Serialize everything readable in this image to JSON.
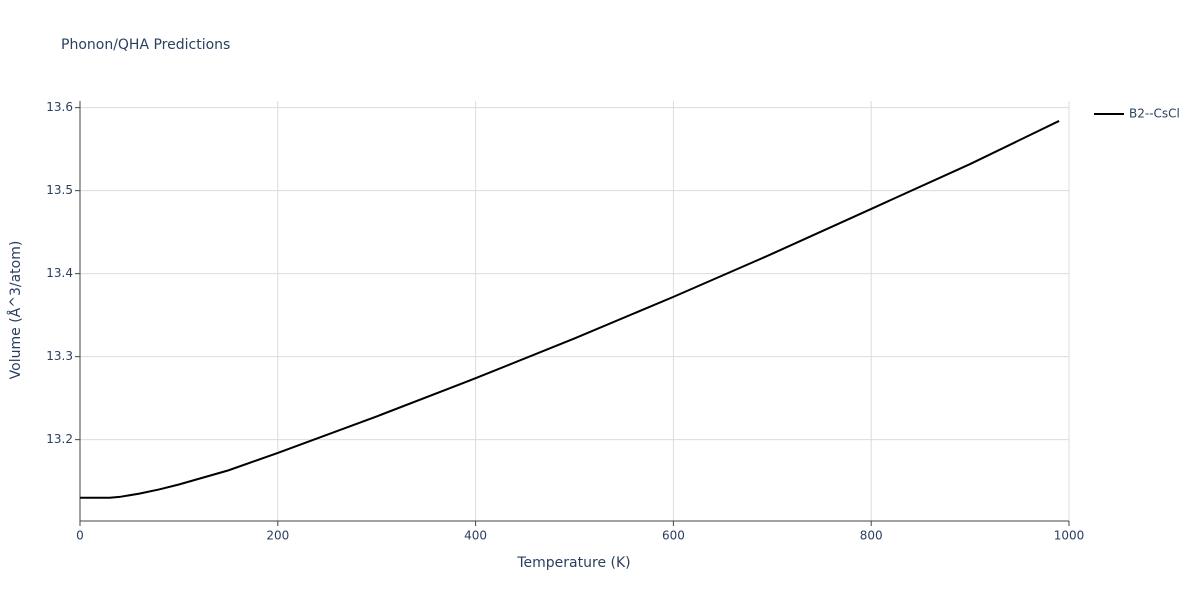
{
  "chart_data": {
    "type": "line",
    "title": "Phonon/QHA Predictions",
    "x_label": "Temperature (K)",
    "y_label": "Volume (Å^3/atom)",
    "x": [
      0,
      30,
      40,
      60,
      80,
      100,
      150,
      200,
      300,
      400,
      500,
      600,
      700,
      800,
      900,
      990
    ],
    "series": [
      {
        "name": "B2--CsCl",
        "color": "#000000",
        "values": [
          13.13,
          13.13,
          13.131,
          13.135,
          13.14,
          13.146,
          13.163,
          13.184,
          13.228,
          13.274,
          13.322,
          13.372,
          13.424,
          13.478,
          13.532,
          13.584
        ]
      }
    ],
    "xlim": [
      0,
      1000
    ],
    "xticks": [
      0,
      200,
      400,
      600,
      800,
      1000
    ],
    "ylim": [
      13.102,
      13.608
    ],
    "yticks": [
      13.2,
      13.3,
      13.4,
      13.5,
      13.6
    ],
    "grid": true,
    "legend": "right"
  }
}
